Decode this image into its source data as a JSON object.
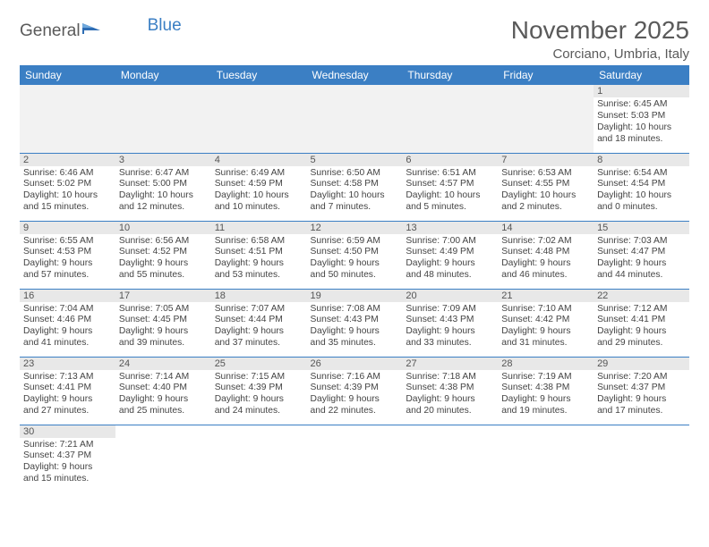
{
  "logo": {
    "text1": "General",
    "text2": "Blue"
  },
  "title": "November 2025",
  "location": "Corciano, Umbria, Italy",
  "colors": {
    "header_bg": "#3b7fc4",
    "header_text": "#ffffff",
    "daynum_bg": "#e8e8e8",
    "border": "#3b7fc4",
    "text": "#444444",
    "title_text": "#5a5a5a"
  },
  "day_names": [
    "Sunday",
    "Monday",
    "Tuesday",
    "Wednesday",
    "Thursday",
    "Friday",
    "Saturday"
  ],
  "weeks": [
    [
      null,
      null,
      null,
      null,
      null,
      null,
      {
        "n": "1",
        "sr": "Sunrise: 6:45 AM",
        "ss": "Sunset: 5:03 PM",
        "dl1": "Daylight: 10 hours",
        "dl2": "and 18 minutes."
      }
    ],
    [
      {
        "n": "2",
        "sr": "Sunrise: 6:46 AM",
        "ss": "Sunset: 5:02 PM",
        "dl1": "Daylight: 10 hours",
        "dl2": "and 15 minutes."
      },
      {
        "n": "3",
        "sr": "Sunrise: 6:47 AM",
        "ss": "Sunset: 5:00 PM",
        "dl1": "Daylight: 10 hours",
        "dl2": "and 12 minutes."
      },
      {
        "n": "4",
        "sr": "Sunrise: 6:49 AM",
        "ss": "Sunset: 4:59 PM",
        "dl1": "Daylight: 10 hours",
        "dl2": "and 10 minutes."
      },
      {
        "n": "5",
        "sr": "Sunrise: 6:50 AM",
        "ss": "Sunset: 4:58 PM",
        "dl1": "Daylight: 10 hours",
        "dl2": "and 7 minutes."
      },
      {
        "n": "6",
        "sr": "Sunrise: 6:51 AM",
        "ss": "Sunset: 4:57 PM",
        "dl1": "Daylight: 10 hours",
        "dl2": "and 5 minutes."
      },
      {
        "n": "7",
        "sr": "Sunrise: 6:53 AM",
        "ss": "Sunset: 4:55 PM",
        "dl1": "Daylight: 10 hours",
        "dl2": "and 2 minutes."
      },
      {
        "n": "8",
        "sr": "Sunrise: 6:54 AM",
        "ss": "Sunset: 4:54 PM",
        "dl1": "Daylight: 10 hours",
        "dl2": "and 0 minutes."
      }
    ],
    [
      {
        "n": "9",
        "sr": "Sunrise: 6:55 AM",
        "ss": "Sunset: 4:53 PM",
        "dl1": "Daylight: 9 hours",
        "dl2": "and 57 minutes."
      },
      {
        "n": "10",
        "sr": "Sunrise: 6:56 AM",
        "ss": "Sunset: 4:52 PM",
        "dl1": "Daylight: 9 hours",
        "dl2": "and 55 minutes."
      },
      {
        "n": "11",
        "sr": "Sunrise: 6:58 AM",
        "ss": "Sunset: 4:51 PM",
        "dl1": "Daylight: 9 hours",
        "dl2": "and 53 minutes."
      },
      {
        "n": "12",
        "sr": "Sunrise: 6:59 AM",
        "ss": "Sunset: 4:50 PM",
        "dl1": "Daylight: 9 hours",
        "dl2": "and 50 minutes."
      },
      {
        "n": "13",
        "sr": "Sunrise: 7:00 AM",
        "ss": "Sunset: 4:49 PM",
        "dl1": "Daylight: 9 hours",
        "dl2": "and 48 minutes."
      },
      {
        "n": "14",
        "sr": "Sunrise: 7:02 AM",
        "ss": "Sunset: 4:48 PM",
        "dl1": "Daylight: 9 hours",
        "dl2": "and 46 minutes."
      },
      {
        "n": "15",
        "sr": "Sunrise: 7:03 AM",
        "ss": "Sunset: 4:47 PM",
        "dl1": "Daylight: 9 hours",
        "dl2": "and 44 minutes."
      }
    ],
    [
      {
        "n": "16",
        "sr": "Sunrise: 7:04 AM",
        "ss": "Sunset: 4:46 PM",
        "dl1": "Daylight: 9 hours",
        "dl2": "and 41 minutes."
      },
      {
        "n": "17",
        "sr": "Sunrise: 7:05 AM",
        "ss": "Sunset: 4:45 PM",
        "dl1": "Daylight: 9 hours",
        "dl2": "and 39 minutes."
      },
      {
        "n": "18",
        "sr": "Sunrise: 7:07 AM",
        "ss": "Sunset: 4:44 PM",
        "dl1": "Daylight: 9 hours",
        "dl2": "and 37 minutes."
      },
      {
        "n": "19",
        "sr": "Sunrise: 7:08 AM",
        "ss": "Sunset: 4:43 PM",
        "dl1": "Daylight: 9 hours",
        "dl2": "and 35 minutes."
      },
      {
        "n": "20",
        "sr": "Sunrise: 7:09 AM",
        "ss": "Sunset: 4:43 PM",
        "dl1": "Daylight: 9 hours",
        "dl2": "and 33 minutes."
      },
      {
        "n": "21",
        "sr": "Sunrise: 7:10 AM",
        "ss": "Sunset: 4:42 PM",
        "dl1": "Daylight: 9 hours",
        "dl2": "and 31 minutes."
      },
      {
        "n": "22",
        "sr": "Sunrise: 7:12 AM",
        "ss": "Sunset: 4:41 PM",
        "dl1": "Daylight: 9 hours",
        "dl2": "and 29 minutes."
      }
    ],
    [
      {
        "n": "23",
        "sr": "Sunrise: 7:13 AM",
        "ss": "Sunset: 4:41 PM",
        "dl1": "Daylight: 9 hours",
        "dl2": "and 27 minutes."
      },
      {
        "n": "24",
        "sr": "Sunrise: 7:14 AM",
        "ss": "Sunset: 4:40 PM",
        "dl1": "Daylight: 9 hours",
        "dl2": "and 25 minutes."
      },
      {
        "n": "25",
        "sr": "Sunrise: 7:15 AM",
        "ss": "Sunset: 4:39 PM",
        "dl1": "Daylight: 9 hours",
        "dl2": "and 24 minutes."
      },
      {
        "n": "26",
        "sr": "Sunrise: 7:16 AM",
        "ss": "Sunset: 4:39 PM",
        "dl1": "Daylight: 9 hours",
        "dl2": "and 22 minutes."
      },
      {
        "n": "27",
        "sr": "Sunrise: 7:18 AM",
        "ss": "Sunset: 4:38 PM",
        "dl1": "Daylight: 9 hours",
        "dl2": "and 20 minutes."
      },
      {
        "n": "28",
        "sr": "Sunrise: 7:19 AM",
        "ss": "Sunset: 4:38 PM",
        "dl1": "Daylight: 9 hours",
        "dl2": "and 19 minutes."
      },
      {
        "n": "29",
        "sr": "Sunrise: 7:20 AM",
        "ss": "Sunset: 4:37 PM",
        "dl1": "Daylight: 9 hours",
        "dl2": "and 17 minutes."
      }
    ],
    [
      {
        "n": "30",
        "sr": "Sunrise: 7:21 AM",
        "ss": "Sunset: 4:37 PM",
        "dl1": "Daylight: 9 hours",
        "dl2": "and 15 minutes."
      },
      null,
      null,
      null,
      null,
      null,
      null
    ]
  ]
}
